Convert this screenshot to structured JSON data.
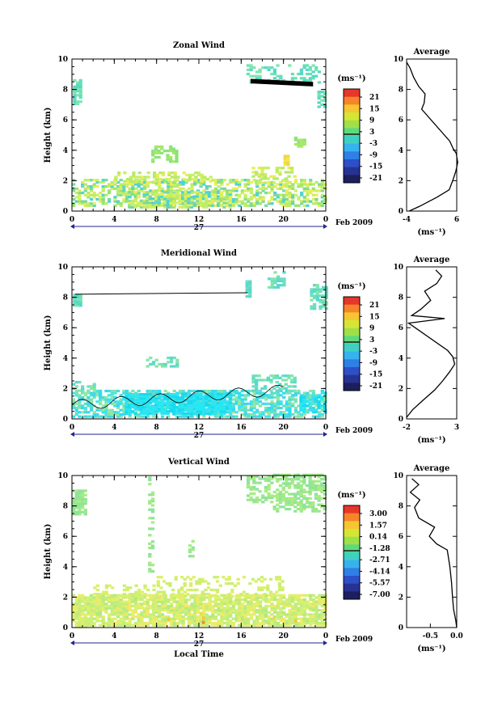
{
  "chart_data": [
    {
      "type": "heatmap",
      "title": "Zonal Wind",
      "ylabel": "Height (km)",
      "xlim": [
        0,
        24
      ],
      "ylim": [
        0,
        10
      ],
      "x_ticks": [
        "0",
        "4",
        "8",
        "12",
        "16",
        "20",
        "0"
      ],
      "y_ticks": [
        "0",
        "2",
        "4",
        "6",
        "8",
        "10"
      ],
      "date_label": "27",
      "month_label": "Feb 2009",
      "colorbar": {
        "unit": "(ms⁻¹)",
        "ticks": [
          "21",
          "15",
          "9",
          "3",
          "-3",
          "-9",
          "-15",
          "-21"
        ]
      },
      "profile": {
        "title": "Average",
        "xlabel": "(ms⁻¹)",
        "x_ticks": [
          "-4",
          "6"
        ],
        "xlim": [
          -4,
          6
        ],
        "y_ticks": [
          "0",
          "2",
          "4",
          "6",
          "8",
          "10"
        ],
        "points": [
          [
            -3.5,
            0
          ],
          [
            -1.5,
            0.3
          ],
          [
            2,
            0.9
          ],
          [
            4.5,
            1.4
          ],
          [
            5.2,
            2.0
          ],
          [
            5.8,
            2.6
          ],
          [
            6.2,
            3.2
          ],
          [
            5.9,
            3.8
          ],
          [
            5.3,
            4.1
          ],
          [
            4.6,
            4.6
          ],
          [
            -1,
            6.7
          ],
          [
            -0.5,
            7.1
          ],
          [
            -0.3,
            7.7
          ],
          [
            -1.6,
            8.2
          ],
          [
            -2.6,
            8.8
          ],
          [
            -3.3,
            9.4
          ],
          [
            -4,
            9.8
          ]
        ]
      }
    },
    {
      "type": "heatmap",
      "title": "Meridional Wind",
      "ylabel": "Height (km)",
      "xlim": [
        0,
        24
      ],
      "ylim": [
        0,
        10
      ],
      "x_ticks": [
        "0",
        "4",
        "8",
        "12",
        "16",
        "20",
        "0"
      ],
      "y_ticks": [
        "0",
        "2",
        "4",
        "6",
        "8",
        "10"
      ],
      "date_label": "27",
      "month_label": "Feb 2009",
      "colorbar": {
        "unit": "(ms⁻¹)",
        "ticks": [
          "21",
          "15",
          "9",
          "3",
          "-3",
          "-9",
          "-15",
          "-21"
        ]
      },
      "profile": {
        "title": "Average",
        "xlabel": "(ms⁻¹)",
        "x_ticks": [
          "-2",
          "3"
        ],
        "xlim": [
          -2,
          3
        ],
        "y_ticks": [
          "0",
          "2",
          "4",
          "6",
          "8",
          "10"
        ],
        "points": [
          [
            -2,
            0.1
          ],
          [
            -1.4,
            0.6
          ],
          [
            -0.4,
            1.2
          ],
          [
            0.8,
            1.9
          ],
          [
            1.6,
            2.5
          ],
          [
            2.3,
            3.1
          ],
          [
            2.8,
            3.6
          ],
          [
            2.6,
            4.1
          ],
          [
            2.1,
            4.5
          ],
          [
            -1.8,
            6.3
          ],
          [
            1.8,
            6.6
          ],
          [
            -1.5,
            6.8
          ],
          [
            -0.6,
            7.2
          ],
          [
            0.4,
            7.8
          ],
          [
            -0.2,
            8.4
          ],
          [
            1.0,
            8.9
          ],
          [
            1.5,
            9.4
          ],
          [
            0.9,
            9.8
          ]
        ]
      }
    },
    {
      "type": "heatmap",
      "title": "Vertical Wind",
      "ylabel": "Height (km)",
      "xlabel": "Local Time",
      "xlim": [
        0,
        24
      ],
      "ylim": [
        0,
        10
      ],
      "x_ticks": [
        "0",
        "4",
        "8",
        "12",
        "16",
        "20",
        "0"
      ],
      "y_ticks": [
        "0",
        "2",
        "4",
        "6",
        "8",
        "10"
      ],
      "date_label": "27",
      "month_label": "Feb 2009",
      "colorbar": {
        "unit": "(ms⁻¹)",
        "ticks": [
          "3.00",
          "1.57",
          "0.14",
          "-1.28",
          "-2.71",
          "-4.14",
          "-5.57",
          "-7.00"
        ]
      },
      "profile": {
        "title": "Average",
        "xlabel": "(ms⁻¹)",
        "x_ticks": [
          "-0.5",
          "0.0"
        ],
        "xlim": [
          -0.95,
          0.0
        ],
        "y_ticks": [
          "0",
          "2",
          "4",
          "6",
          "8",
          "10"
        ],
        "points": [
          [
            0,
            0
          ],
          [
            -0.02,
            0.5
          ],
          [
            -0.06,
            1.2
          ],
          [
            -0.08,
            2.0
          ],
          [
            -0.1,
            3.0
          ],
          [
            -0.13,
            4.0
          ],
          [
            -0.18,
            5.1
          ],
          [
            -0.38,
            5.5
          ],
          [
            -0.52,
            6.0
          ],
          [
            -0.42,
            6.6
          ],
          [
            -0.72,
            7.2
          ],
          [
            -0.8,
            7.9
          ],
          [
            -0.7,
            8.4
          ],
          [
            -0.88,
            8.9
          ],
          [
            -0.72,
            9.4
          ],
          [
            -0.85,
            9.8
          ]
        ]
      }
    }
  ]
}
